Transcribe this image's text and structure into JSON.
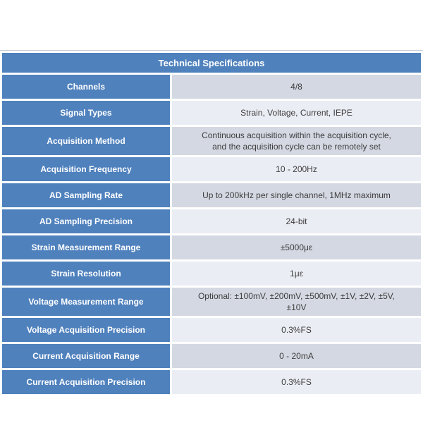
{
  "table": {
    "title": "Technical Specifications",
    "colors": {
      "header_bg": "#4f81bd",
      "label_bg": "#4f81bd",
      "row_dark_bg": "#d4d8e2",
      "row_light_bg": "#ebedf4",
      "header_text": "#ffffff",
      "label_text": "#ffffff",
      "value_text": "#3d3d3d",
      "top_rule": "#c7cdd8"
    },
    "rows": [
      {
        "label": "Channels",
        "value": "4/8"
      },
      {
        "label": "Signal Types",
        "value": "Strain, Voltage, Current, IEPE"
      },
      {
        "label": "Acquisition Method",
        "value": "Continuous acquisition within the acquisition cycle,\nand the acquisition cycle can be remotely set"
      },
      {
        "label": "Acquisition Frequency",
        "value": "10 - 200Hz"
      },
      {
        "label": "AD Sampling Rate",
        "value": "Up to 200kHz per single channel, 1MHz maximum"
      },
      {
        "label": "AD Sampling Precision",
        "value": "24-bit"
      },
      {
        "label": "Strain Measurement Range",
        "value": "±5000με"
      },
      {
        "label": "Strain Resolution",
        "value": "1με"
      },
      {
        "label": "Voltage Measurement Range",
        "value": "Optional: ±100mV, ±200mV, ±500mV, ±1V, ±2V, ±5V,\n±10V"
      },
      {
        "label": "Voltage Acquisition Precision",
        "value": "0.3%FS"
      },
      {
        "label": "Current Acquisition Range",
        "value": "0 - 20mA"
      },
      {
        "label": "Current Acquisition Precision",
        "value": "0.3%FS"
      }
    ]
  }
}
